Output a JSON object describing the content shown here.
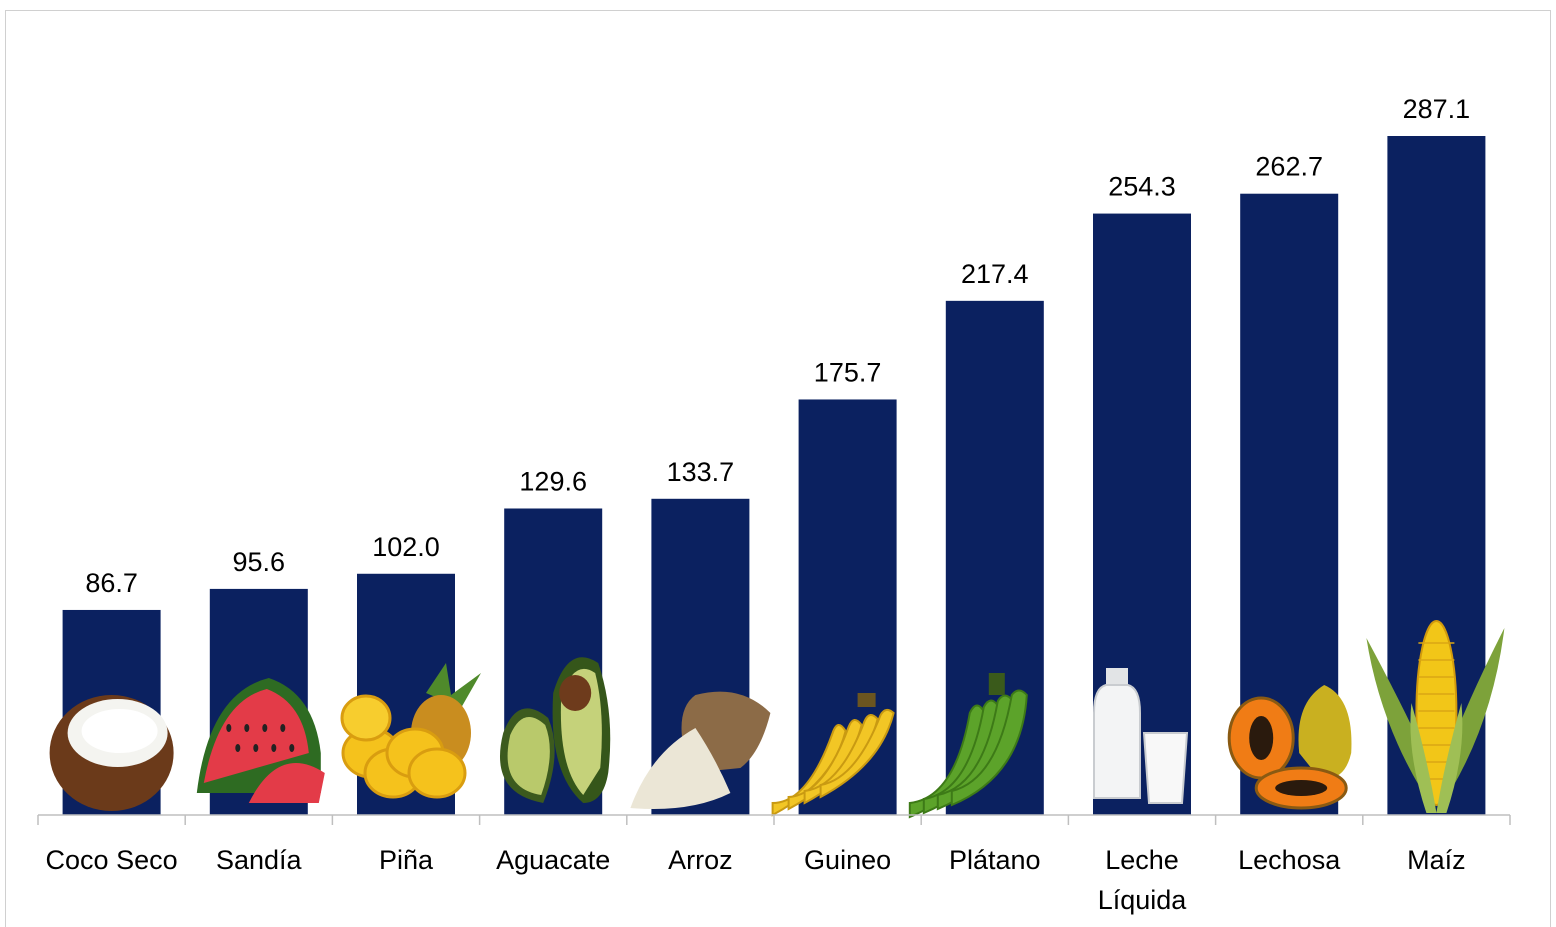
{
  "chart_data": {
    "type": "bar",
    "title": "",
    "xlabel": "",
    "ylabel": "",
    "categories": [
      "Coco Seco",
      "Sandía",
      "Piña",
      "Aguacate",
      "Arroz",
      "Guineo",
      "Plátano",
      "Leche Líquida",
      "Lechosa",
      "Maíz"
    ],
    "values": [
      86.7,
      95.6,
      102.0,
      129.6,
      133.7,
      175.7,
      217.4,
      254.3,
      262.7,
      287.1
    ],
    "value_labels": [
      "86.7",
      "95.6",
      "102.0",
      "129.6",
      "133.7",
      "175.7",
      "217.4",
      "254.3",
      "262.7",
      "287.1"
    ],
    "category_lines": [
      [
        "Coco Seco"
      ],
      [
        "Sandía"
      ],
      [
        "Piña"
      ],
      [
        "Aguacate"
      ],
      [
        "Arroz"
      ],
      [
        "Guineo"
      ],
      [
        "Plátano"
      ],
      [
        "Leche",
        "Líquida"
      ],
      [
        "Lechosa"
      ],
      [
        "Maíz"
      ]
    ],
    "icons": [
      "coconut-icon",
      "watermelon-icon",
      "pineapple-icon",
      "avocado-icon",
      "rice-sack-icon",
      "banana-icon",
      "plantain-icon",
      "milk-bottle-icon",
      "papaya-icon",
      "corn-icon"
    ],
    "ylim": [
      0,
      287.1
    ],
    "grid": false,
    "legend": "none",
    "colors": {
      "bar": "#0b2160",
      "axis": "#bfbfbf",
      "text": "#000000"
    }
  }
}
